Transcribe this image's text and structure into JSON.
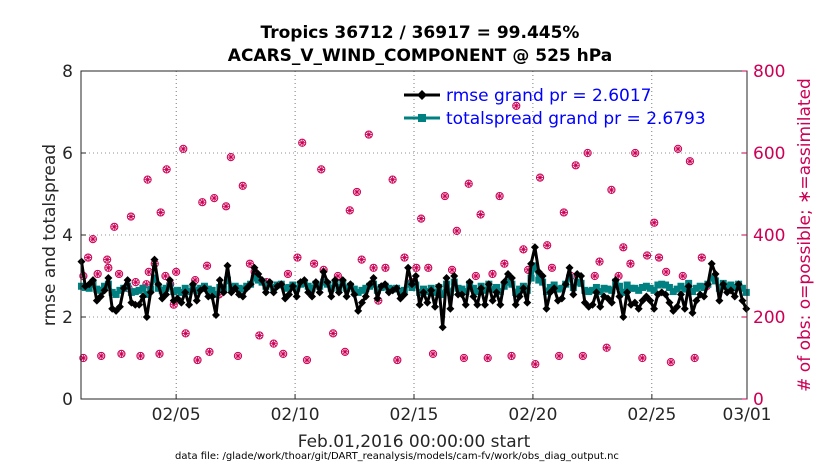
{
  "chart_data": {
    "type": "line",
    "title": "Tropics 36712 / 36917 = 99.445%",
    "subtitle": "ACARS_V_WIND_COMPONENT @ 525 hPa",
    "xlabel": "Feb.01,2016 00:00:00 start",
    "ylabel": "rmse and totalspread",
    "y2label": "# of obs: o=possible; ∗=assimilated",
    "footnote": "data file: /glade/work/thoar/git/DART_reanalysis/models/cam-fv/work/obs_diag_output.nc",
    "xlim": [
      1,
      29
    ],
    "ylim": [
      0,
      8
    ],
    "y2lim": [
      0,
      800
    ],
    "x_ticks": [
      {
        "x": 5,
        "label": "02/05"
      },
      {
        "x": 10,
        "label": "02/10"
      },
      {
        "x": 15,
        "label": "02/15"
      },
      {
        "x": 20,
        "label": "02/20"
      },
      {
        "x": 25,
        "label": "02/25"
      },
      {
        "x": 29,
        "label": "03/01"
      }
    ],
    "y_ticks": [
      0,
      2,
      4,
      6,
      8
    ],
    "y2_ticks": [
      0,
      200,
      400,
      600,
      800
    ],
    "y_tick_labels": [
      "0",
      "2",
      "4",
      "6",
      "8"
    ],
    "y2_tick_labels": [
      "0",
      "200",
      "400",
      "600",
      "800"
    ],
    "legend_position": "top-right",
    "colors": {
      "rmse": "#000000",
      "spread": "#008080",
      "obs": "#cc0055"
    },
    "series": [
      {
        "name": "rmse grand pr = 2.6017",
        "marker": "diamond",
        "values": [
          3.35,
          2.75,
          2.8,
          2.9,
          2.4,
          2.5,
          2.65,
          2.95,
          2.2,
          2.15,
          2.25,
          2.7,
          2.9,
          2.35,
          2.3,
          2.3,
          2.5,
          2.0,
          2.6,
          3.4,
          2.8,
          2.45,
          2.55,
          2.9,
          2.4,
          2.45,
          2.35,
          2.6,
          2.3,
          2.8,
          2.4,
          2.65,
          2.7,
          2.5,
          2.5,
          2.05,
          2.9,
          2.6,
          3.25,
          2.6,
          2.7,
          2.55,
          2.5,
          2.7,
          2.8,
          3.2,
          3.05,
          2.9,
          2.6,
          2.85,
          2.6,
          2.75,
          2.8,
          2.45,
          2.55,
          2.75,
          2.5,
          2.85,
          2.9,
          2.6,
          2.5,
          2.85,
          2.6,
          3.1,
          2.85,
          2.5,
          2.9,
          2.6,
          2.9,
          2.5,
          2.8,
          2.55,
          2.15,
          2.35,
          2.5,
          2.8,
          2.95,
          2.45,
          2.75,
          2.8,
          2.6,
          2.65,
          2.7,
          2.45,
          2.55,
          3.2,
          2.8,
          3.0,
          2.3,
          2.6,
          2.35,
          2.65,
          2.25,
          2.75,
          1.75,
          2.95,
          2.2,
          3.0,
          2.55,
          2.55,
          2.3,
          2.85,
          2.5,
          2.3,
          2.7,
          2.3,
          2.8,
          2.4,
          2.6,
          2.3,
          2.85,
          3.05,
          2.95,
          2.3,
          2.5,
          2.7,
          2.35,
          3.3,
          3.7,
          3.1,
          3.0,
          2.2,
          2.6,
          2.7,
          2.4,
          2.45,
          2.8,
          3.2,
          2.55,
          3.05,
          3.0,
          2.35,
          2.25,
          2.3,
          2.6,
          2.25,
          2.5,
          2.45,
          2.35,
          2.9,
          2.5,
          2.0,
          2.6,
          2.3,
          2.35,
          2.2,
          2.4,
          2.5,
          2.4,
          2.2,
          2.55,
          2.6,
          2.55,
          2.35,
          2.15,
          2.25,
          2.55,
          2.2,
          2.75,
          2.1,
          2.4,
          2.55,
          2.5,
          2.8,
          3.3,
          3.05,
          2.4,
          2.8,
          2.6,
          2.65,
          2.5,
          2.8,
          2.4,
          2.2
        ]
      },
      {
        "name": "totalspread grand pr = 2.6793",
        "marker": "square",
        "values": [
          2.75,
          2.72,
          2.7,
          2.8,
          2.68,
          2.65,
          2.75,
          2.8,
          2.6,
          2.55,
          2.65,
          2.7,
          2.75,
          2.6,
          2.62,
          2.65,
          2.7,
          2.55,
          2.68,
          2.95,
          2.7,
          2.65,
          2.7,
          2.75,
          2.62,
          2.65,
          2.6,
          2.7,
          2.62,
          2.72,
          2.65,
          2.7,
          2.75,
          2.68,
          2.65,
          2.55,
          2.72,
          2.68,
          2.9,
          2.72,
          2.75,
          2.7,
          2.68,
          2.75,
          2.8,
          2.95,
          2.9,
          2.85,
          2.75,
          2.8,
          2.72,
          2.78,
          2.8,
          2.7,
          2.72,
          2.78,
          2.7,
          2.8,
          2.82,
          2.75,
          2.7,
          2.8,
          2.75,
          2.85,
          2.8,
          2.7,
          2.82,
          2.72,
          2.8,
          2.7,
          2.75,
          2.68,
          2.6,
          2.65,
          2.7,
          2.75,
          2.8,
          2.65,
          2.72,
          2.75,
          2.7,
          2.68,
          2.7,
          2.62,
          2.65,
          2.8,
          2.72,
          2.78,
          2.6,
          2.68,
          2.62,
          2.7,
          2.6,
          2.72,
          2.55,
          2.8,
          2.6,
          2.85,
          2.7,
          2.68,
          2.62,
          2.8,
          2.7,
          2.62,
          2.75,
          2.65,
          2.8,
          2.68,
          2.72,
          2.62,
          2.75,
          2.85,
          2.8,
          2.6,
          2.68,
          2.75,
          2.65,
          2.95,
          3.25,
          2.9,
          2.85,
          2.62,
          2.72,
          2.78,
          2.68,
          2.7,
          2.8,
          2.95,
          2.72,
          2.85,
          2.82,
          2.65,
          2.62,
          2.65,
          2.72,
          2.62,
          2.7,
          2.68,
          2.65,
          2.85,
          2.75,
          2.6,
          2.78,
          2.7,
          2.7,
          2.65,
          2.72,
          2.75,
          2.7,
          2.65,
          2.78,
          2.8,
          2.78,
          2.72,
          2.62,
          2.68,
          2.75,
          2.68,
          2.82,
          2.62,
          2.7,
          2.75,
          2.72,
          2.8,
          2.95,
          2.88,
          2.7,
          2.82,
          2.75,
          2.78,
          2.72,
          2.8,
          2.7,
          2.6
        ]
      }
    ],
    "obs_possible": [
      [
        1.1,
        300
      ],
      [
        1.1,
        100
      ],
      [
        1.3,
        345
      ],
      [
        1.5,
        390
      ],
      [
        1.7,
        305
      ],
      [
        1.85,
        105
      ],
      [
        2.1,
        340
      ],
      [
        2.15,
        320
      ],
      [
        2.4,
        420
      ],
      [
        2.6,
        305
      ],
      [
        2.7,
        110
      ],
      [
        3.0,
        270
      ],
      [
        3.1,
        445
      ],
      [
        3.3,
        285
      ],
      [
        3.5,
        105
      ],
      [
        3.75,
        280
      ],
      [
        3.8,
        535
      ],
      [
        3.85,
        310
      ],
      [
        4.1,
        330
      ],
      [
        4.3,
        110
      ],
      [
        4.35,
        455
      ],
      [
        4.55,
        300
      ],
      [
        4.6,
        560
      ],
      [
        4.75,
        280
      ],
      [
        4.9,
        230
      ],
      [
        5.0,
        310
      ],
      [
        5.3,
        610
      ],
      [
        5.4,
        160
      ],
      [
        5.8,
        290
      ],
      [
        5.9,
        95
      ],
      [
        6.1,
        480
      ],
      [
        6.3,
        325
      ],
      [
        6.4,
        115
      ],
      [
        6.6,
        490
      ],
      [
        6.8,
        255
      ],
      [
        7.1,
        470
      ],
      [
        7.3,
        590
      ],
      [
        7.6,
        105
      ],
      [
        7.8,
        520
      ],
      [
        8.1,
        330
      ],
      [
        8.3,
        310
      ],
      [
        8.5,
        155
      ],
      [
        8.8,
        285
      ],
      [
        9.1,
        135
      ],
      [
        9.5,
        110
      ],
      [
        9.7,
        305
      ],
      [
        10.1,
        345
      ],
      [
        10.3,
        625
      ],
      [
        10.5,
        95
      ],
      [
        10.8,
        330
      ],
      [
        11.1,
        560
      ],
      [
        11.2,
        315
      ],
      [
        11.6,
        160
      ],
      [
        11.8,
        300
      ],
      [
        12.1,
        115
      ],
      [
        12.3,
        460
      ],
      [
        12.6,
        505
      ],
      [
        12.8,
        340
      ],
      [
        13.1,
        645
      ],
      [
        13.3,
        320
      ],
      [
        13.5,
        240
      ],
      [
        13.8,
        320
      ],
      [
        14.1,
        535
      ],
      [
        14.3,
        95
      ],
      [
        14.6,
        345
      ],
      [
        14.9,
        285
      ],
      [
        15.1,
        320
      ],
      [
        15.3,
        440
      ],
      [
        15.6,
        320
      ],
      [
        15.8,
        110
      ],
      [
        16.1,
        255
      ],
      [
        16.3,
        495
      ],
      [
        16.6,
        315
      ],
      [
        16.8,
        410
      ],
      [
        17.1,
        100
      ],
      [
        17.3,
        525
      ],
      [
        17.6,
        300
      ],
      [
        17.8,
        450
      ],
      [
        18.1,
        100
      ],
      [
        18.3,
        305
      ],
      [
        18.6,
        495
      ],
      [
        18.8,
        330
      ],
      [
        19.1,
        105
      ],
      [
        19.3,
        715
      ],
      [
        19.6,
        365
      ],
      [
        19.8,
        315
      ],
      [
        20.1,
        85
      ],
      [
        20.3,
        540
      ],
      [
        20.6,
        375
      ],
      [
        20.8,
        320
      ],
      [
        21.1,
        105
      ],
      [
        21.3,
        455
      ],
      [
        21.6,
        300
      ],
      [
        21.8,
        570
      ],
      [
        22.1,
        105
      ],
      [
        22.3,
        600
      ],
      [
        22.6,
        300
      ],
      [
        22.8,
        335
      ],
      [
        23.1,
        125
      ],
      [
        23.3,
        510
      ],
      [
        23.6,
        300
      ],
      [
        23.8,
        370
      ],
      [
        24.1,
        330
      ],
      [
        24.3,
        600
      ],
      [
        24.6,
        100
      ],
      [
        24.8,
        350
      ],
      [
        25.1,
        430
      ],
      [
        25.3,
        345
      ],
      [
        25.6,
        310
      ],
      [
        25.8,
        90
      ],
      [
        26.1,
        610
      ],
      [
        26.3,
        300
      ],
      [
        26.6,
        580
      ],
      [
        26.8,
        100
      ],
      [
        27.1,
        345
      ],
      [
        27.3,
        275
      ]
    ],
    "obs_assimilated_same_as_possible": true
  }
}
